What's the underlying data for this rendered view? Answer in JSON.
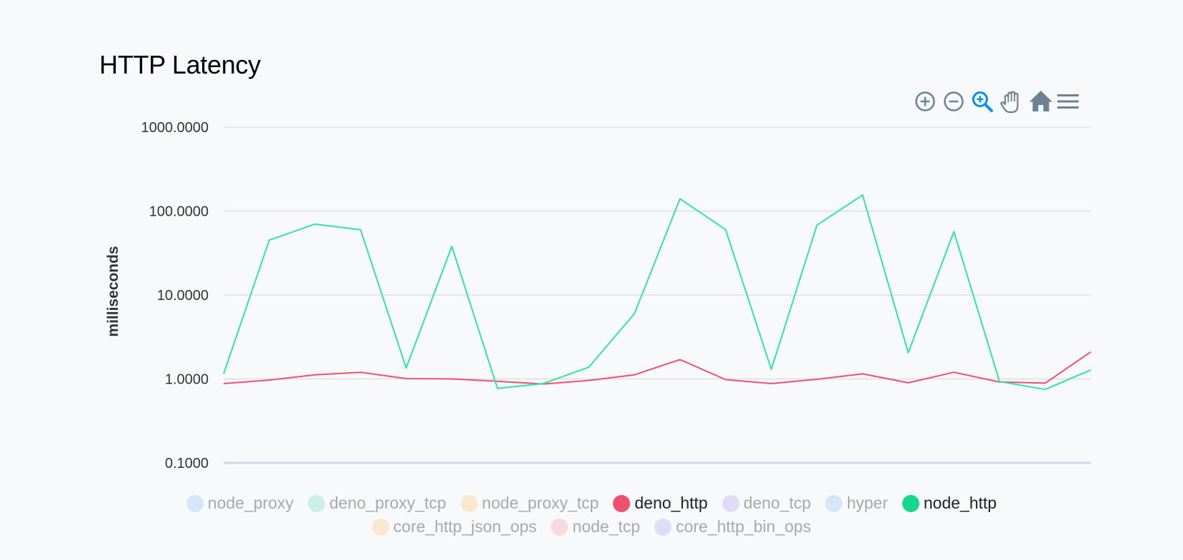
{
  "chart_data": {
    "type": "line",
    "title": "HTTP Latency",
    "ylabel": "milliseconds",
    "y_scale": "log",
    "ylim": [
      0.1,
      1000
    ],
    "y_ticks": [
      "0.1000",
      "1.0000",
      "10.0000",
      "100.0000",
      "1000.0000"
    ],
    "grid": true,
    "legend_position": "bottom",
    "series": [
      {
        "name": "deno_http",
        "color": "#f0506e",
        "values": [
          0.88,
          0.97,
          1.12,
          1.2,
          1.01,
          1.0,
          0.94,
          0.87,
          0.96,
          1.12,
          1.7,
          0.98,
          0.88,
          0.99,
          1.15,
          0.9,
          1.2,
          0.92,
          0.89,
          2.1
        ]
      },
      {
        "name": "node_http",
        "color": "#2ee6a0",
        "values": [
          1.15,
          45.0,
          70.0,
          60.0,
          1.35,
          38.0,
          0.77,
          0.88,
          1.38,
          6.0,
          140.0,
          60.0,
          1.3,
          68.0,
          155.0,
          2.05,
          57.0,
          0.93,
          0.75,
          1.28
        ]
      }
    ]
  },
  "toolbar": [
    {
      "name": "zoom-in-icon"
    },
    {
      "name": "zoom-out-icon"
    },
    {
      "name": "selection-zoom-icon",
      "active": true
    },
    {
      "name": "pan-hand-icon"
    },
    {
      "name": "reset-home-icon"
    },
    {
      "name": "menu-icon"
    }
  ],
  "legend": {
    "rows": [
      [
        {
          "label": "node_proxy",
          "color": "#6aaef5",
          "active": false
        },
        {
          "label": "deno_proxy_tcp",
          "color": "#3fd3a8",
          "active": false
        },
        {
          "label": "node_proxy_tcp",
          "color": "#f6b84a",
          "active": false
        },
        {
          "label": "deno_http",
          "color": "#f0506e",
          "active": true
        },
        {
          "label": "deno_tcp",
          "color": "#9b87e5",
          "active": false
        },
        {
          "label": "hyper",
          "color": "#6aaef5",
          "active": false
        },
        {
          "label": "node_http",
          "color": "#14d98c",
          "active": true
        }
      ],
      [
        {
          "label": "core_http_json_ops",
          "color": "#f6b84a",
          "active": false
        },
        {
          "label": "node_tcp",
          "color": "#f07f91",
          "active": false
        },
        {
          "label": "core_http_bin_ops",
          "color": "#9b87e5",
          "active": false
        }
      ]
    ]
  }
}
